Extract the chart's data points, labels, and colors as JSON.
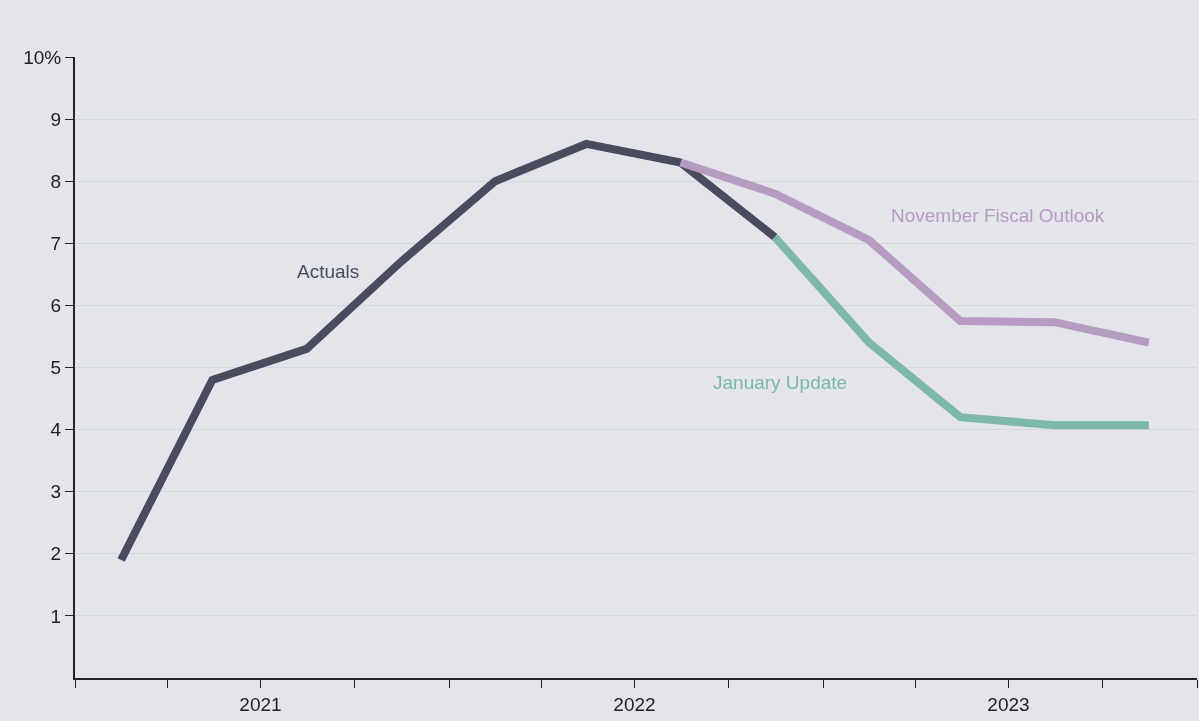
{
  "chart_data": {
    "type": "line",
    "series": [
      {
        "name": "Actuals",
        "color": "#4b4b5f",
        "x": [
          "2021-02-15",
          "2021-05-15",
          "2021-08-15",
          "2021-11-15",
          "2022-02-15",
          "2022-05-15",
          "2022-08-15",
          "2022-11-15"
        ],
        "values": [
          1.9,
          4.8,
          5.3,
          6.7,
          8.0,
          8.6,
          8.3,
          7.1
        ]
      },
      {
        "name": "November Fiscal Outlook",
        "color": "#b79cc1",
        "x": [
          "2022-08-15",
          "2022-11-15",
          "2023-02-15",
          "2023-05-15",
          "2023-08-15",
          "2023-11-15"
        ],
        "values": [
          8.3,
          7.8,
          7.05,
          5.75,
          5.73,
          5.4
        ]
      },
      {
        "name": "January Update",
        "color": "#7db8a9",
        "x": [
          "2022-11-15",
          "2023-02-15",
          "2023-05-15",
          "2023-08-15",
          "2023-11-15"
        ],
        "values": [
          7.1,
          5.4,
          4.2,
          4.07,
          4.07
        ]
      }
    ],
    "xlim": [
      "2021-01-01",
      "2024-01-01"
    ],
    "xticks": [
      {
        "value": "2021-01-01",
        "label": null
      },
      {
        "value": "2021-04-01",
        "label": null
      },
      {
        "value": "2021-07-01",
        "label": "2021"
      },
      {
        "value": "2021-10-01",
        "label": null
      },
      {
        "value": "2022-01-01",
        "label": null
      },
      {
        "value": "2022-04-01",
        "label": null
      },
      {
        "value": "2022-07-01",
        "label": "2022"
      },
      {
        "value": "2022-10-01",
        "label": null
      },
      {
        "value": "2023-01-01",
        "label": null
      },
      {
        "value": "2023-04-01",
        "label": null
      },
      {
        "value": "2023-07-01",
        "label": "2023"
      },
      {
        "value": "2023-10-01",
        "label": null
      },
      {
        "value": "2024-01-01",
        "label": null
      }
    ],
    "ylim": [
      0,
      10
    ],
    "yticks": [
      1,
      2,
      3,
      4,
      5,
      6,
      7,
      8,
      9,
      {
        "value": 10,
        "label": "10%"
      }
    ],
    "grid": "y",
    "legend": false,
    "marker": "none",
    "line_style": "solid"
  }
}
